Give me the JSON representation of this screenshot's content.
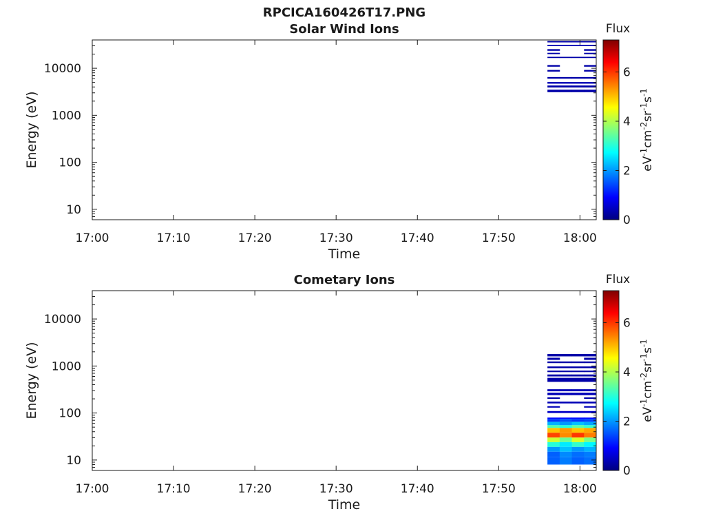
{
  "figure": {
    "title": "RPCICA160426T17.PNG"
  },
  "chart_data": [
    {
      "type": "heatmap",
      "title": "Solar Wind Ions",
      "xlabel": "Time",
      "ylabel": "Energy (eV)",
      "x_ticks": [
        "17:00",
        "17:10",
        "17:20",
        "17:30",
        "17:40",
        "17:50",
        "18:00"
      ],
      "x_range": [
        "17:00",
        "18:02"
      ],
      "y_scale": "log",
      "y_ticks": [
        "10",
        "100",
        "1000",
        "10000"
      ],
      "y_range": [
        6,
        40000
      ],
      "colorbar": {
        "label": "Flux",
        "units": "eV-1cm-2sr-1s-1",
        "ticks": [
          "0",
          "2",
          "4",
          "6"
        ],
        "range": [
          0,
          7.3
        ],
        "colormap": "jet"
      },
      "data_time_range": [
        "17:56",
        "18:02"
      ],
      "data_columns": [
        "17:56",
        "17:57.5",
        "17:59",
        "18:00.5"
      ],
      "cells": [
        {
          "e_lo": 35500,
          "e_hi": 38000,
          "flux": [
            0.3,
            0.3,
            0.3,
            0.3
          ]
        },
        {
          "e_lo": 29500,
          "e_hi": 31500,
          "flux": [
            0.4,
            0.4,
            0.4,
            0.4
          ]
        },
        {
          "e_lo": 23500,
          "e_hi": 25500,
          "flux": [
            0.3,
            null,
            null,
            0.3
          ]
        },
        {
          "e_lo": 20000,
          "e_hi": 21300,
          "flux": [
            0.3,
            null,
            null,
            0.3
          ]
        },
        {
          "e_lo": 16500,
          "e_hi": 17500,
          "flux": [
            0.3,
            0.3,
            0.3,
            0.3
          ]
        },
        {
          "e_lo": 10800,
          "e_hi": 11700,
          "flux": [
            0.3,
            null,
            null,
            0.3
          ]
        },
        {
          "e_lo": 8500,
          "e_hi": 9200,
          "flux": [
            0.3,
            null,
            null,
            0.3
          ]
        },
        {
          "e_lo": 6000,
          "e_hi": 6500,
          "flux": [
            0.3,
            0.3,
            0.3,
            0.3
          ]
        },
        {
          "e_lo": 4700,
          "e_hi": 5100,
          "flux": [
            0.4,
            0.4,
            0.4,
            0.4
          ]
        },
        {
          "e_lo": 3900,
          "e_hi": 4300,
          "flux": [
            0.3,
            0.3,
            0.3,
            0.3
          ]
        },
        {
          "e_lo": 3100,
          "e_hi": 3500,
          "flux": [
            0.3,
            0.3,
            0.3,
            0.3
          ]
        }
      ]
    },
    {
      "type": "heatmap",
      "title": "Cometary Ions",
      "xlabel": "Time",
      "ylabel": "Energy (eV)",
      "x_ticks": [
        "17:00",
        "17:10",
        "17:20",
        "17:30",
        "17:40",
        "17:50",
        "18:00"
      ],
      "x_range": [
        "17:00",
        "18:02"
      ],
      "y_scale": "log",
      "y_ticks": [
        "10",
        "100",
        "1000",
        "10000"
      ],
      "y_range": [
        6,
        40000
      ],
      "colorbar": {
        "label": "Flux",
        "units": "eV-1cm-2sr-1s-1",
        "ticks": [
          "0",
          "2",
          "4",
          "6"
        ],
        "range": [
          0,
          7.3
        ],
        "colormap": "jet"
      },
      "data_time_range": [
        "17:56",
        "18:02"
      ],
      "data_columns": [
        "17:56",
        "17:57.5",
        "17:59",
        "18:00.5"
      ],
      "cells": [
        {
          "e_lo": 1600,
          "e_hi": 1800,
          "flux": [
            0.3,
            0.3,
            0.3,
            0.3
          ]
        },
        {
          "e_lo": 1350,
          "e_hi": 1500,
          "flux": [
            0.3,
            null,
            null,
            0.3
          ]
        },
        {
          "e_lo": 1150,
          "e_hi": 1250,
          "flux": [
            0.3,
            0.3,
            0.3,
            0.3
          ]
        },
        {
          "e_lo": 900,
          "e_hi": 980,
          "flux": [
            0.3,
            0.3,
            0.3,
            0.3
          ]
        },
        {
          "e_lo": 740,
          "e_hi": 800,
          "flux": [
            0.3,
            0.3,
            0.3,
            0.3
          ]
        },
        {
          "e_lo": 600,
          "e_hi": 660,
          "flux": [
            0.3,
            0.3,
            0.3,
            0.3
          ]
        },
        {
          "e_lo": 460,
          "e_hi": 560,
          "flux": [
            0.3,
            0.3,
            0.3,
            0.3
          ]
        },
        {
          "e_lo": 290,
          "e_hi": 320,
          "flux": [
            0.4,
            0.4,
            0.4,
            0.4
          ]
        },
        {
          "e_lo": 240,
          "e_hi": 270,
          "flux": [
            0.4,
            0.4,
            0.4,
            0.4
          ]
        },
        {
          "e_lo": 200,
          "e_hi": 215,
          "flux": [
            0.3,
            null,
            null,
            0.3
          ]
        },
        {
          "e_lo": 160,
          "e_hi": 175,
          "flux": [
            0.4,
            0.4,
            0.4,
            0.4
          ]
        },
        {
          "e_lo": 130,
          "e_hi": 140,
          "flux": [
            0.4,
            null,
            null,
            0.4
          ]
        },
        {
          "e_lo": 100,
          "e_hi": 110,
          "flux": [
            0.5,
            0.5,
            0.5,
            0.5
          ]
        },
        {
          "e_lo": 75,
          "e_hi": 80,
          "flux": [
            1.0,
            1.0,
            1.0,
            1.0
          ]
        },
        {
          "e_lo": 65,
          "e_hi": 75,
          "flux": [
            1.3,
            1.5,
            1.3,
            1.4
          ]
        },
        {
          "e_lo": 55,
          "e_hi": 65,
          "flux": [
            2.2,
            2.0,
            2.3,
            2.1
          ]
        },
        {
          "e_lo": 48,
          "e_hi": 55,
          "flux": [
            3.3,
            3.0,
            3.4,
            3.1
          ]
        },
        {
          "e_lo": 38,
          "e_hi": 48,
          "flux": [
            5.0,
            5.3,
            5.0,
            5.2
          ]
        },
        {
          "e_lo": 30,
          "e_hi": 38,
          "flux": [
            5.9,
            5.4,
            6.0,
            5.5
          ]
        },
        {
          "e_lo": 24,
          "e_hi": 30,
          "flux": [
            4.2,
            3.5,
            4.3,
            3.6
          ]
        },
        {
          "e_lo": 19,
          "e_hi": 24,
          "flux": [
            3.0,
            2.6,
            3.1,
            2.7
          ]
        },
        {
          "e_lo": 15,
          "e_hi": 19,
          "flux": [
            2.0,
            2.3,
            2.0,
            2.2
          ]
        },
        {
          "e_lo": 11.5,
          "e_hi": 15,
          "flux": [
            1.6,
            1.9,
            1.7,
            1.8
          ]
        },
        {
          "e_lo": 8,
          "e_hi": 11.5,
          "flux": [
            1.6,
            1.8,
            1.6,
            1.7
          ]
        }
      ]
    }
  ]
}
